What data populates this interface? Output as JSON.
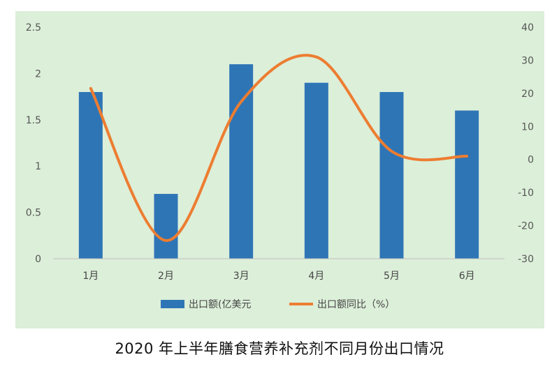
{
  "chart_data": {
    "type": "bar+line",
    "title": "2020 年上半年膳食营养补充剂不同月份出口情况",
    "categories": [
      "1月",
      "2月",
      "3月",
      "4月",
      "5月",
      "6月"
    ],
    "series": [
      {
        "name": "出口额(亿美元",
        "type": "bar",
        "axis": "left",
        "color": "#2e75b6",
        "values": [
          1.8,
          0.7,
          2.1,
          1.9,
          1.8,
          1.6
        ]
      },
      {
        "name": "出口额同比（%）",
        "type": "line",
        "axis": "right",
        "color": "#ed7d31",
        "smooth": true,
        "values": [
          21.5,
          -24.5,
          17.5,
          31,
          2.5,
          1
        ]
      }
    ],
    "y_left": {
      "ylim": [
        0,
        2.5
      ],
      "ticks": [
        "0",
        "0.5",
        "1",
        "1.5",
        "2",
        "2.5"
      ]
    },
    "y_right": {
      "ylim": [
        -30,
        40
      ],
      "ticks": [
        "-30",
        "-20",
        "-10",
        "0",
        "10",
        "20",
        "30",
        "40"
      ]
    },
    "grid": false,
    "legend": "bottom",
    "background": "#dcefd9"
  }
}
